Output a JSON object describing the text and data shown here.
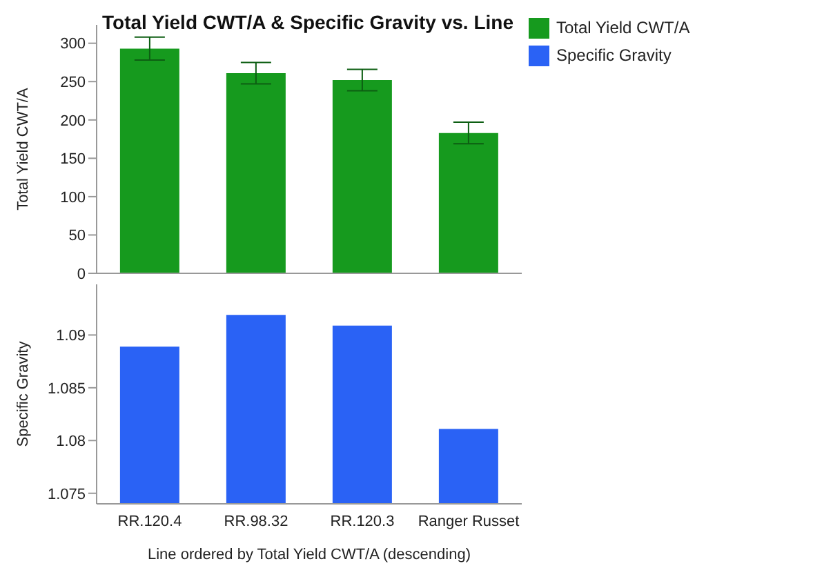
{
  "chart_data": [
    {
      "type": "bar",
      "title": "Total Yield CWT/A & Specific Gravity vs. Line",
      "ylabel": "Total Yield CWT/A",
      "categories": [
        null,
        null,
        null,
        null
      ],
      "series": [
        {
          "name": "Total Yield CWT/A",
          "color": "#169a1e",
          "values": [
            293,
            261,
            252,
            183
          ],
          "errors": [
            [
              278,
              308
            ],
            [
              247,
              275
            ],
            [
              238,
              266
            ],
            [
              169,
              197
            ]
          ]
        }
      ],
      "ylim": [
        0,
        324
      ],
      "yticks": [
        0,
        50,
        100,
        150,
        200,
        250,
        300
      ],
      "tick_labels": "y",
      "legend": "top right",
      "grid": false
    },
    {
      "type": "bar",
      "xlabel": "Line ordered by Total Yield CWT/A (descending)",
      "ylabel": "Specific Gravity",
      "categories": [
        "RR.120.4",
        "RR.98.32",
        "RR.120.3",
        "Ranger Russet"
      ],
      "series": [
        {
          "name": "Specific Gravity",
          "color": "#2a62f5",
          "values": [
            1.0889,
            1.0919,
            1.0909,
            1.0811
          ]
        }
      ],
      "ylim": [
        1.074,
        1.0948
      ],
      "yticks": [
        1.075,
        1.08,
        1.085,
        1.09
      ],
      "legend": "top right",
      "grid": false
    }
  ]
}
